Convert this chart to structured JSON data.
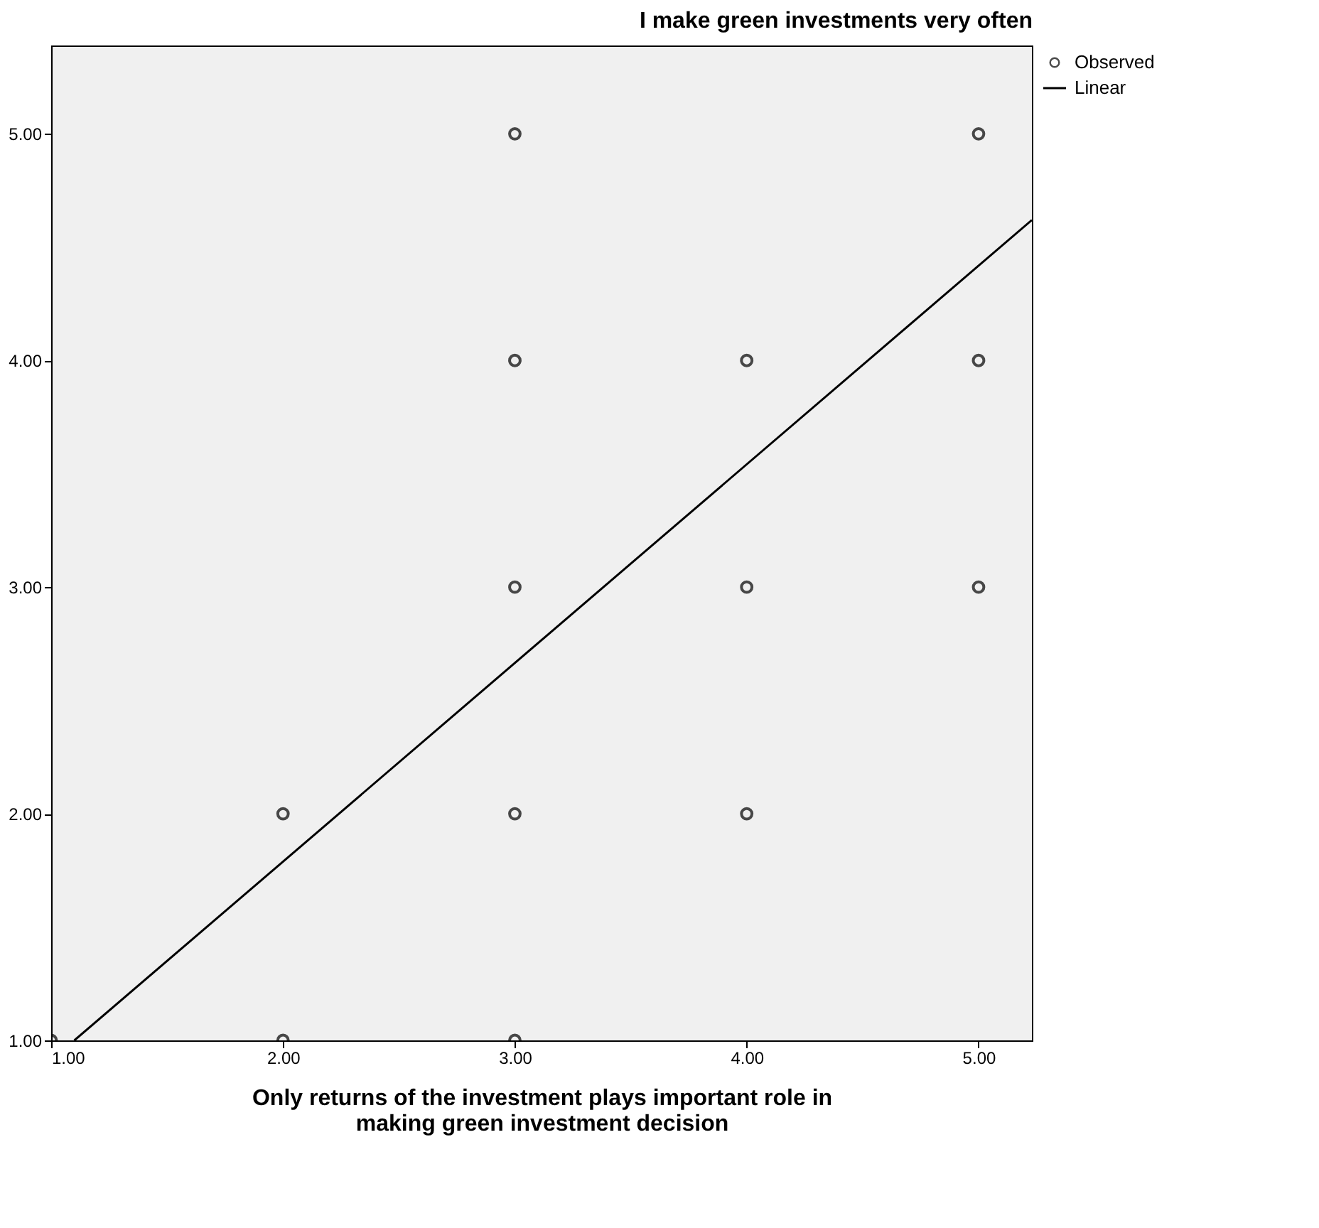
{
  "chart_data": {
    "type": "scatter",
    "xlabel": "Only returns of the investment plays important role in\nmaking green investment decision",
    "ylabel": "I make green investments very often",
    "series": [
      {
        "name": "Observed",
        "color": "#000000",
        "marker": "circle",
        "x": [
          1,
          2,
          2,
          3,
          3,
          3,
          3,
          3,
          4,
          4,
          4,
          5,
          5,
          5
        ],
        "values": [
          1,
          1,
          2,
          1,
          2,
          3,
          4,
          5,
          2,
          3,
          4,
          3,
          4,
          5
        ]
      },
      {
        "name": "Linear",
        "type": "line",
        "color": "#000000",
        "line_style": "solid",
        "x": [
          1.1,
          5.23
        ],
        "values": [
          1.0,
          4.62
        ]
      }
    ],
    "xlim": [
      1,
      5.23
    ],
    "ylim": [
      1,
      5.39
    ],
    "xticks": [
      {
        "value": 1,
        "label": "1.00"
      },
      {
        "value": 2,
        "label": "2.00"
      },
      {
        "value": 3,
        "label": "3.00"
      },
      {
        "value": 4,
        "label": "4.00"
      },
      {
        "value": 5,
        "label": "5.00"
      }
    ],
    "yticks": [
      {
        "value": 1,
        "label": "1.00"
      },
      {
        "value": 2,
        "label": "2.00"
      },
      {
        "value": 3,
        "label": "3.00"
      },
      {
        "value": 4,
        "label": "4.00"
      },
      {
        "value": 5,
        "label": "5.00"
      }
    ],
    "grid": false,
    "legend": "top right"
  }
}
